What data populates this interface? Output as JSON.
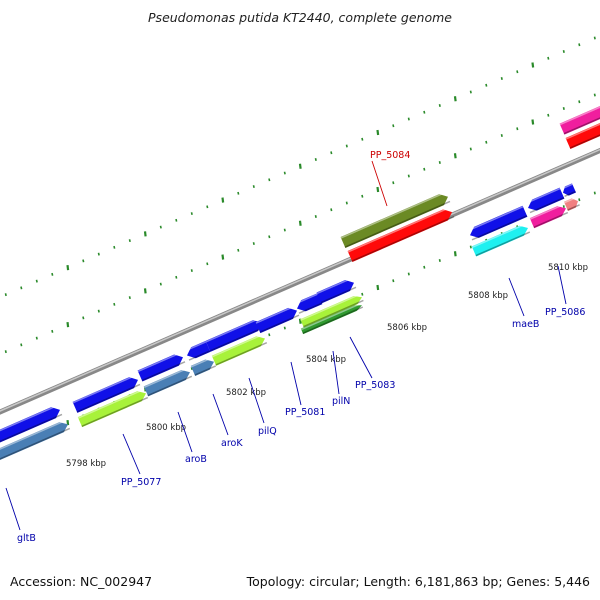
{
  "title": "Pseudomonas putida KT2440, complete genome",
  "accession_text": "Accession: NC_002947",
  "topology_text": "Topology: circular; Length: 6,181,863 bp; Genes: 5,446",
  "ticks": [
    {
      "label": "5798 kbp"
    },
    {
      "label": "5800 kbp"
    },
    {
      "label": "5802 kbp"
    },
    {
      "label": "5804 kbp"
    },
    {
      "label": "5806 kbp"
    },
    {
      "label": "5808 kbp"
    },
    {
      "label": "5810 kbp"
    }
  ],
  "gene_labels": [
    {
      "name": "PP_5084",
      "color": "#cc0000"
    },
    {
      "name": "gltB",
      "color": "#0000aa"
    },
    {
      "name": "PP_5077",
      "color": "#0000aa"
    },
    {
      "name": "aroB",
      "color": "#0000aa"
    },
    {
      "name": "aroK",
      "color": "#0000aa"
    },
    {
      "name": "pilQ",
      "color": "#0000aa"
    },
    {
      "name": "PP_5081",
      "color": "#0000aa"
    },
    {
      "name": "pilN",
      "color": "#0000aa"
    },
    {
      "name": "PP_5083",
      "color": "#0000aa"
    },
    {
      "name": "maeB",
      "color": "#0000aa"
    },
    {
      "name": "PP_5086",
      "color": "#0000aa"
    }
  ],
  "colors": {
    "blue": "#1010e8",
    "steel": "#4a7fb5",
    "lime": "#a8f23a",
    "green": "#2f9a2f",
    "olive": "#6b8a24",
    "red": "#ff0a0a",
    "cyan": "#1ef0f0",
    "magenta": "#f01e9e",
    "salmon": "#f08080",
    "grid": "#2a8a2a",
    "backbone": "#888888"
  }
}
